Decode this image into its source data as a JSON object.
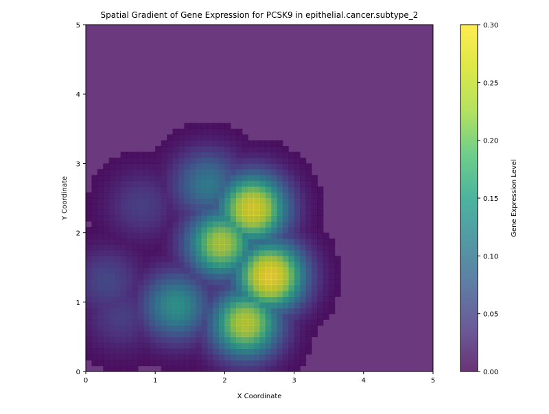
{
  "chart_data": {
    "type": "heatmap",
    "title": "Spatial Gradient of Gene Expression for PCSK9 in epithelial.cancer.subtype_2",
    "xlabel": "X Coordinate",
    "ylabel": "Y Coordinate",
    "xlim": [
      0,
      5
    ],
    "ylim": [
      0,
      5
    ],
    "x_ticks": [
      "0",
      "1",
      "2",
      "3",
      "4",
      "5"
    ],
    "y_ticks": [
      "0",
      "1",
      "2",
      "3",
      "4",
      "5"
    ],
    "colorbar": {
      "label": "Gene Expression Level",
      "range": [
        0.0,
        0.3
      ],
      "ticks": [
        "0.00",
        "0.05",
        "0.10",
        "0.15",
        "0.20",
        "0.25",
        "0.30"
      ],
      "colormap": "viridis",
      "alpha": 0.8
    },
    "grid": false,
    "hotspots": [
      {
        "x": 2.65,
        "y": 1.38,
        "value": 0.3
      },
      {
        "x": 2.4,
        "y": 2.35,
        "value": 0.28
      },
      {
        "x": 2.3,
        "y": 0.7,
        "value": 0.25
      },
      {
        "x": 1.95,
        "y": 1.85,
        "value": 0.24
      },
      {
        "x": 1.3,
        "y": 0.95,
        "value": 0.15
      },
      {
        "x": 1.75,
        "y": 2.7,
        "value": 0.12
      },
      {
        "x": 0.8,
        "y": 2.4,
        "value": 0.05
      },
      {
        "x": 0.3,
        "y": 1.3,
        "value": 0.06
      },
      {
        "x": 0.5,
        "y": 0.8,
        "value": 0.05
      }
    ]
  }
}
